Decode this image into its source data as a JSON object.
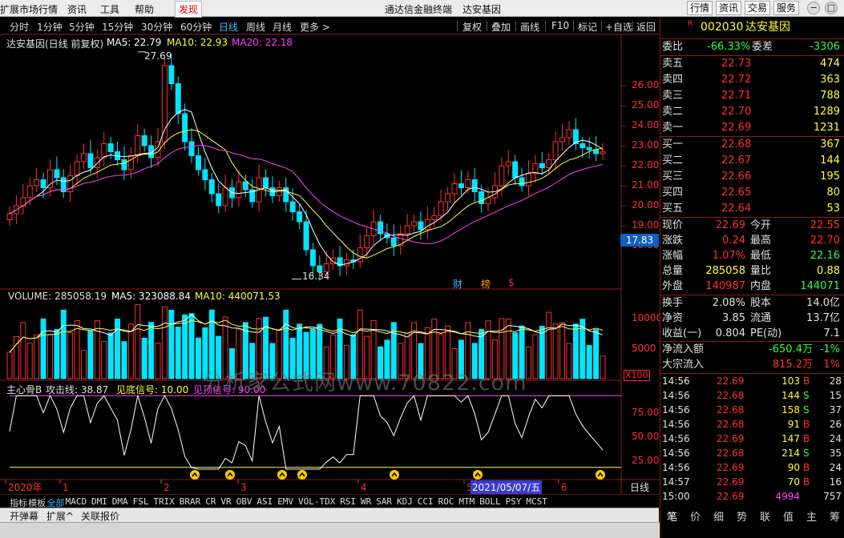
{
  "menubar": {
    "left_items": [
      "扩展市场行情",
      "资讯",
      "工具",
      "帮助",
      "发现"
    ],
    "center_title": "通达信金融终端",
    "center_stock": "达安基因",
    "right_buttons": [
      "行情",
      "资讯",
      "交易",
      "服务"
    ]
  },
  "periods": [
    "分时",
    "1分钟",
    "5分钟",
    "15分钟",
    "30分钟",
    "60分钟",
    "日线",
    "周线",
    "月线",
    "更多 >"
  ],
  "tools": [
    "复权",
    "叠加",
    "画线",
    "F10",
    "标记",
    "+自选",
    "返回"
  ],
  "main_legend": {
    "title": "达安基因(日线 前复权)",
    "ma5": "MA5: 22.79",
    "ma10": "MA10: 22.93",
    "ma20": "MA20: 22.18"
  },
  "vol_legend": {
    "vol": "VOLUME: 285058.19",
    "ma5": "MA5: 323088.84",
    "ma10": "MA10: 440071.53"
  },
  "ind_legend": {
    "name": "主心骨B",
    "attack": "攻击线: 38.87",
    "bottom": "见底信号: 10.00",
    "top": "见顶信号: 90.00"
  },
  "price_scale": [
    "26.00",
    "25.00",
    "24.00",
    "23.00",
    "22.00",
    "21.00",
    "20.00",
    "19.00",
    "18.00"
  ],
  "price_marker": "17.83",
  "high_label": "27.69",
  "low_label": "16.34",
  "vol_scale": [
    "10000",
    "5000"
  ],
  "vol_unit": "X100",
  "ind_scale": [
    "75.00",
    "50.00",
    "25.00"
  ],
  "event_markers": [
    "财",
    "榜",
    "$"
  ],
  "time_axis": {
    "labels": [
      "2020年",
      "1",
      "2",
      "3",
      "4",
      "5",
      "6"
    ],
    "cursor_date": "2021/05/07/五",
    "right_label": "日线"
  },
  "watermark": "分析家公式网www.70822.com",
  "indicator_tabs": [
    "指标",
    "模板",
    "全部",
    "MACD",
    "DMI",
    "DMA",
    "FSL",
    "TRIX",
    "BRAR",
    "CR",
    "VR",
    "OBV",
    "ASI",
    "EMV",
    "VOL-TDX",
    "RSI",
    "WR",
    "SAR",
    "KDJ",
    "CCI",
    "ROC",
    "MTM",
    "BOLL",
    "PSY",
    "MCST"
  ],
  "bottom_tabs": [
    "开弹幕",
    "扩展^",
    "关联报价"
  ],
  "stock": {
    "code": "002030",
    "name": "达安基因",
    "flag": "R"
  },
  "weibi": {
    "label1": "委比",
    "value1": "-66.33%",
    "label2": "委差",
    "value2": "-3306"
  },
  "asks": [
    {
      "label": "卖五",
      "price": "22.73",
      "vol": "474"
    },
    {
      "label": "卖四",
      "price": "22.72",
      "vol": "363"
    },
    {
      "label": "卖三",
      "price": "22.71",
      "vol": "788"
    },
    {
      "label": "卖二",
      "price": "22.70",
      "vol": "1289"
    },
    {
      "label": "卖一",
      "price": "22.69",
      "vol": "1231"
    }
  ],
  "bids": [
    {
      "label": "买一",
      "price": "22.68",
      "vol": "367"
    },
    {
      "label": "买二",
      "price": "22.67",
      "vol": "144"
    },
    {
      "label": "买三",
      "price": "22.66",
      "vol": "195"
    },
    {
      "label": "买四",
      "price": "22.65",
      "vol": "80"
    },
    {
      "label": "买五",
      "price": "22.64",
      "vol": "53"
    }
  ],
  "quote": [
    {
      "l1": "现价",
      "v1": "22.69",
      "l2": "今开",
      "v2": "22.55"
    },
    {
      "l1": "涨跌",
      "v1": "0.24",
      "l2": "最高",
      "v2": "22.70"
    },
    {
      "l1": "涨幅",
      "v1": "1.07%",
      "l2": "最低",
      "v2": "22.16"
    },
    {
      "l1": "总量",
      "v1": "285058",
      "l2": "量比",
      "v2": "0.88"
    },
    {
      "l1": "外盘",
      "v1": "140987",
      "l2": "内盘",
      "v2": "144071"
    },
    {
      "l1": "换手",
      "v1": "2.08%",
      "l2": "股本",
      "v2": "14.0亿"
    },
    {
      "l1": "净资",
      "v1": "3.85",
      "l2": "流通",
      "v2": "13.7亿"
    },
    {
      "l1": "收益(一)",
      "v1": "0.804",
      "l2": "PE(动)",
      "v2": "7.1"
    }
  ],
  "flows": [
    {
      "label": "净流入额",
      "value": "-650.4万",
      "pct": "-1%"
    },
    {
      "label": "大宗流入",
      "value": "815.2万",
      "pct": "1%"
    }
  ],
  "ticks": [
    {
      "time": "14:56",
      "price": "22.69",
      "vol": "103",
      "side": "B",
      "n": "28"
    },
    {
      "time": "14:56",
      "price": "22.68",
      "vol": "144",
      "side": "S",
      "n": "15"
    },
    {
      "time": "14:56",
      "price": "22.68",
      "vol": "158",
      "side": "S",
      "n": "37"
    },
    {
      "time": "14:56",
      "price": "22.68",
      "vol": "91",
      "side": "B",
      "n": "26"
    },
    {
      "time": "14:56",
      "price": "22.69",
      "vol": "147",
      "side": "B",
      "n": "24"
    },
    {
      "time": "14:56",
      "price": "22.68",
      "vol": "214",
      "side": "S",
      "n": "35"
    },
    {
      "time": "14:56",
      "price": "22.69",
      "vol": "90",
      "side": "B",
      "n": "24"
    },
    {
      "time": "14:57",
      "price": "22.69",
      "vol": "70",
      "side": "B",
      "n": "16"
    },
    {
      "time": "15:00",
      "price": "22.69",
      "vol": "4994",
      "side": "",
      "n": "757"
    }
  ],
  "right_tabs": [
    "笔",
    "价",
    "细",
    "势",
    "联",
    "值",
    "主",
    "筹"
  ],
  "colors": {
    "up": "#ff3030",
    "down": "#00e5ff",
    "ma5": "#ffffff",
    "ma10": "#ffff33",
    "ma20": "#ff40ff",
    "accent": "#33c0ff",
    "price": "#ff3030",
    "green": "#33ff33"
  },
  "chart_data": {
    "type": "candlestick",
    "title": "达安基因(日线 前复权)",
    "ylim": [
      16.0,
      28.0
    ],
    "ohlc_close_approx": [
      19.6,
      20.0,
      20.4,
      21.0,
      21.3,
      20.9,
      21.8,
      21.4,
      20.7,
      21.5,
      22.2,
      22.6,
      21.9,
      22.4,
      23.1,
      22.7,
      22.3,
      21.8,
      22.5,
      23.5,
      23.0,
      22.4,
      23.2,
      27.0,
      26.1,
      24.6,
      23.2,
      22.5,
      21.8,
      21.3,
      20.6,
      20.0,
      20.9,
      20.4,
      21.2,
      20.8,
      20.2,
      21.4,
      20.9,
      20.5,
      20.9,
      20.2,
      19.7,
      19.2,
      17.8,
      17.0,
      16.7,
      17.1,
      17.4,
      17.0,
      17.3,
      17.2,
      17.9,
      18.5,
      19.2,
      18.6,
      18.4,
      18.0,
      18.6,
      19.0,
      19.2,
      18.8,
      19.3,
      19.5,
      20.2,
      20.6,
      21.1,
      20.9,
      21.3,
      20.7,
      20.1,
      20.4,
      21.0,
      22.0,
      22.2,
      21.4,
      21.0,
      21.6,
      22.1,
      21.9,
      22.3,
      23.2,
      23.4,
      23.8,
      23.1,
      22.9,
      22.8,
      22.6,
      22.69
    ]
  }
}
